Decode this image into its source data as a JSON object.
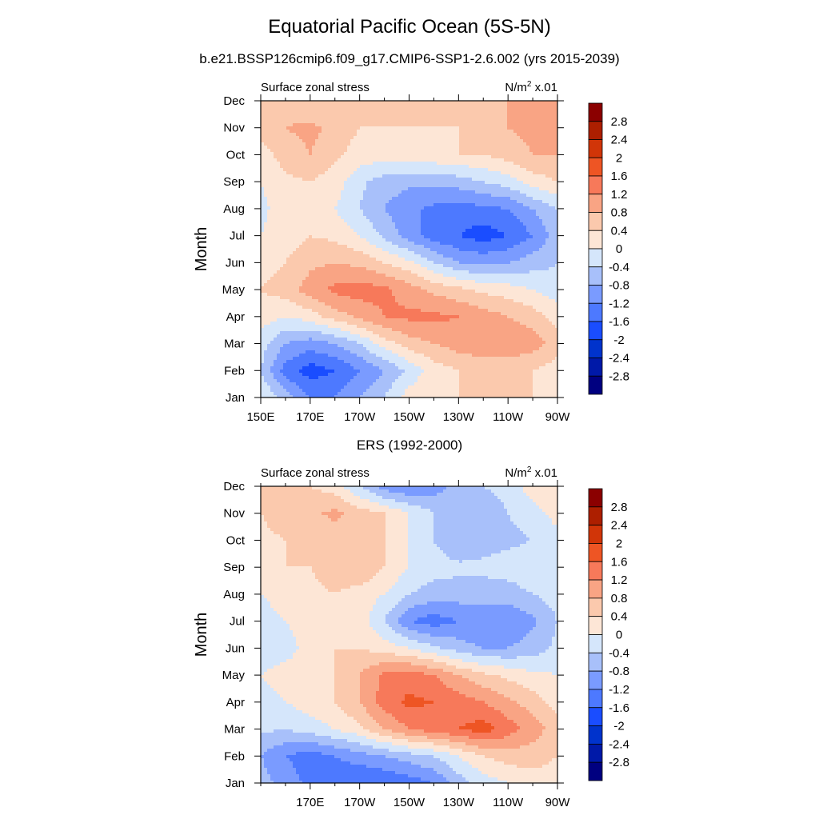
{
  "figure": {
    "title": "Equatorial Pacific Ocean (5S-5N)",
    "subtitle": "b.e21.BSSP126cmip6.f09_g17.CMIP6-SSP1-2.6.002 (yrs 2015-2039)",
    "second_panel_title": "ERS (1992-2000)"
  },
  "colors": {
    "levels": [
      -2.8,
      -2.4,
      -2.0,
      -1.6,
      -1.2,
      -0.8,
      -0.4,
      0,
      0.4,
      0.8,
      1.2,
      1.6,
      2.0,
      2.4,
      2.8
    ],
    "fills": [
      "#000080",
      "#0019a8",
      "#0033cc",
      "#1a4dff",
      "#4d79ff",
      "#7a9bff",
      "#a8c0fa",
      "#d5e6fb",
      "#fde6d6",
      "#fbc9ad",
      "#f9a484",
      "#f7795a",
      "#ee5524",
      "#d13508",
      "#ad1f00",
      "#8b0000"
    ]
  },
  "chart_data": [
    {
      "type": "heatmap",
      "panel_id": "model",
      "left_label": "Surface zonal stress",
      "right_label_base": "N/m",
      "right_label_sup": "2",
      "right_label_tail": " x.01",
      "ylabel": "Month",
      "x_ticks": [
        "150E",
        "170E",
        "170W",
        "150W",
        "130W",
        "110W",
        "90W"
      ],
      "y_ticks": [
        "Jan",
        "Feb",
        "Mar",
        "Apr",
        "May",
        "Jun",
        "Jul",
        "Aug",
        "Sep",
        "Oct",
        "Nov",
        "Dec"
      ],
      "colorbar_labels": [
        "2.8",
        "2.4",
        "2",
        "1.6",
        "1.2",
        "0.8",
        "0.4",
        "0",
        "-0.4",
        "-0.8",
        "-1.2",
        "-1.6",
        "-2",
        "-2.4",
        "-2.8"
      ],
      "x_lon": [
        150,
        160,
        170,
        180,
        190,
        200,
        210,
        220,
        230,
        240,
        250,
        260,
        270
      ],
      "rows": [
        [
          0.0,
          -0.6,
          -1.2,
          -1.2,
          -0.8,
          -0.4,
          0.2,
          0.4,
          0.4,
          0.4,
          0.4,
          0.4,
          0.2
        ],
        [
          -0.4,
          -1.4,
          -1.8,
          -1.6,
          -1.2,
          -0.8,
          -0.3,
          0.2,
          0.4,
          0.4,
          0.4,
          0.4,
          0.2
        ],
        [
          -0.2,
          -0.8,
          -1.0,
          -0.8,
          -0.4,
          0.2,
          0.6,
          0.8,
          1.0,
          1.2,
          1.2,
          1.0,
          0.6
        ],
        [
          0.2,
          0.0,
          0.2,
          0.6,
          0.9,
          1.2,
          1.3,
          1.3,
          1.2,
          1.0,
          0.8,
          0.6,
          0.2
        ],
        [
          0.4,
          0.6,
          1.0,
          1.3,
          1.4,
          1.3,
          1.0,
          0.7,
          0.5,
          0.3,
          0.2,
          0.0,
          -0.2
        ],
        [
          0.2,
          0.4,
          0.7,
          0.8,
          0.7,
          0.4,
          0.1,
          -0.4,
          -0.8,
          -0.9,
          -0.8,
          -0.6,
          -0.4
        ],
        [
          0.0,
          0.2,
          0.4,
          0.3,
          0.0,
          -0.5,
          -1.0,
          -1.4,
          -1.6,
          -1.8,
          -1.6,
          -1.2,
          -0.6
        ],
        [
          -0.1,
          0.2,
          0.3,
          0.0,
          -0.4,
          -0.8,
          -1.1,
          -1.3,
          -1.4,
          -1.3,
          -1.2,
          -0.8,
          -0.4
        ],
        [
          0.0,
          0.3,
          0.4,
          0.2,
          -0.3,
          -0.6,
          -0.7,
          -0.7,
          -0.6,
          -0.4,
          -0.2,
          0.2,
          0.4
        ],
        [
          0.2,
          0.6,
          0.8,
          0.5,
          0.2,
          0.2,
          0.3,
          0.3,
          0.4,
          0.4,
          0.6,
          0.8,
          0.8
        ],
        [
          0.6,
          0.8,
          0.9,
          0.7,
          0.4,
          0.4,
          0.4,
          0.4,
          0.4,
          0.4,
          0.8,
          0.9,
          0.9
        ],
        [
          0.6,
          0.6,
          0.4,
          0.4,
          0.4,
          0.4,
          0.4,
          0.4,
          0.4,
          0.4,
          0.8,
          0.8,
          0.8
        ]
      ]
    },
    {
      "type": "heatmap",
      "panel_id": "ers",
      "left_label": "Surface zonal stress",
      "right_label_base": "N/m",
      "right_label_sup": "2",
      "right_label_tail": " x.01",
      "ylabel": "Month",
      "x_ticks": [
        "170E",
        "170W",
        "150W",
        "130W",
        "110W",
        "90W"
      ],
      "y_ticks": [
        "Jan",
        "Feb",
        "Mar",
        "Apr",
        "May",
        "Jun",
        "Jul",
        "Aug",
        "Sep",
        "Oct",
        "Nov",
        "Dec"
      ],
      "colorbar_labels": [
        "2.8",
        "2.4",
        "2",
        "1.6",
        "1.2",
        "0.8",
        "0.4",
        "0",
        "-0.4",
        "-0.8",
        "-1.2",
        "-1.6",
        "-2",
        "-2.4",
        "-2.8"
      ],
      "x_lon": [
        150,
        160,
        170,
        180,
        190,
        200,
        210,
        220,
        230,
        240,
        250,
        260,
        270
      ],
      "rows": [
        [
          -0.6,
          -1.0,
          -1.3,
          -1.5,
          -1.6,
          -1.6,
          -1.4,
          -1.2,
          -0.6,
          -0.2,
          0.0,
          0.2,
          0.2
        ],
        [
          -0.8,
          -1.2,
          -1.4,
          -1.2,
          -1.0,
          -0.8,
          -0.6,
          -0.4,
          0.0,
          0.4,
          0.6,
          0.6,
          0.4
        ],
        [
          -0.3,
          -0.4,
          -0.2,
          0.0,
          0.3,
          0.8,
          1.2,
          1.4,
          1.6,
          1.8,
          1.4,
          1.0,
          0.6
        ],
        [
          -0.2,
          0.0,
          0.2,
          0.4,
          0.8,
          1.4,
          1.7,
          1.6,
          1.4,
          1.2,
          0.9,
          0.6,
          0.2
        ],
        [
          0.0,
          0.2,
          0.2,
          0.4,
          0.8,
          1.3,
          1.4,
          1.2,
          0.8,
          0.5,
          0.3,
          0.1,
          0.0
        ],
        [
          -0.3,
          -0.2,
          0.2,
          0.4,
          0.4,
          0.2,
          0.0,
          -0.3,
          -0.6,
          -0.8,
          -0.8,
          -0.6,
          -0.3
        ],
        [
          -0.2,
          0.0,
          0.2,
          0.3,
          0.2,
          -0.4,
          -1.2,
          -1.4,
          -1.2,
          -1.2,
          -1.2,
          -0.9,
          -0.4
        ],
        [
          0.0,
          0.2,
          0.3,
          0.4,
          0.2,
          0.0,
          -0.4,
          -0.6,
          -0.6,
          -0.6,
          -0.6,
          -0.4,
          -0.2
        ],
        [
          0.2,
          0.4,
          0.4,
          0.6,
          0.8,
          0.4,
          0.0,
          -0.2,
          -0.3,
          -0.3,
          -0.2,
          -0.1,
          0.0
        ],
        [
          0.3,
          0.4,
          0.5,
          0.6,
          0.6,
          0.4,
          0.0,
          -0.4,
          -0.8,
          -0.6,
          -0.5,
          -0.4,
          -0.2
        ],
        [
          0.4,
          0.6,
          0.7,
          0.9,
          0.6,
          0.4,
          0.0,
          -0.4,
          -0.6,
          -0.8,
          -0.4,
          -0.2,
          0.2
        ],
        [
          0.4,
          0.4,
          0.4,
          0.2,
          -0.4,
          -1.0,
          -1.2,
          -1.0,
          -0.6,
          -0.4,
          -0.2,
          0.2,
          0.4
        ]
      ]
    }
  ]
}
